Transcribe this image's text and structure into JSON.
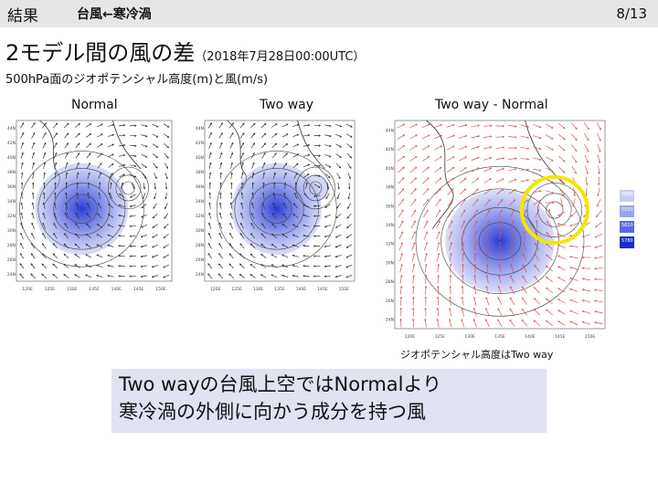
{
  "header": {
    "section": "結果",
    "topic": "台風←寒冷渦",
    "page": "8/13"
  },
  "title": {
    "main": "2モデル間の風の差",
    "sub": "（2018年7月28日00:00UTC）"
  },
  "description": "500hPa面のジオポテンシャル高度(m)と風(m/s)",
  "panels": [
    {
      "label": "Normal"
    },
    {
      "label": "Two way"
    },
    {
      "label": "Two way - Normal"
    }
  ],
  "map_ticks": {
    "lat_left": [
      "44N",
      "42N",
      "40N",
      "38N",
      "36N",
      "34N",
      "32N",
      "30N",
      "28N",
      "26N",
      "24N"
    ],
    "lon_left": [
      "120E",
      "125E",
      "130E",
      "135E",
      "140E",
      "145E",
      "150E"
    ],
    "lat_right": [
      "44N",
      "42N",
      "40N",
      "38N",
      "36N",
      "34N",
      "32N",
      "30N",
      "28N",
      "26N",
      "24N"
    ],
    "lon_right": [
      "120E",
      "125E",
      "130E",
      "135E",
      "140E",
      "145E",
      "150E"
    ]
  },
  "legend_values": [
    "5880",
    "5850",
    "5820",
    "5780"
  ],
  "colors": {
    "header_bg": "#e6e6e6",
    "callout_bg": "#dfe3f2",
    "highlight_circle": "#f2e600",
    "diff_arrows": "#e05050",
    "wind_arrows": "#333333",
    "low_core": "#2030d0"
  },
  "note": "ジオポテンシャル高度はTwo way",
  "callout": {
    "line1": "Two wayの台風上空ではNormalより",
    "line2": "寒冷渦の外側に向かう成分を持つ風"
  }
}
